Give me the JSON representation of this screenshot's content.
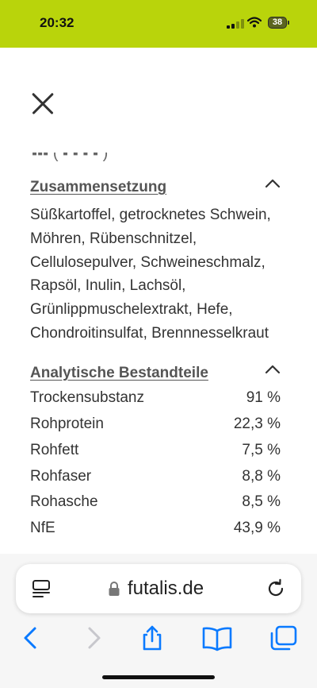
{
  "status": {
    "time": "20:32",
    "battery": "38"
  },
  "header": {
    "close_label": ""
  },
  "composition": {
    "title": "Zusammensetzung",
    "text": "Süßkartoffel, getrocknetes Schwein,\nMöhren, Rübenschnitzel,\nCellulosepulver, Schweineschmalz,\nRapsöl, Inulin, Lachsöl,\nGrünlippmuschelextrakt, Hefe,\nChondroitinsulfat, Brennnesselkraut"
  },
  "analysis": {
    "title": "Analytische Bestandteile",
    "rows": [
      {
        "label": "Trockensubstanz",
        "value": "91 %"
      },
      {
        "label": "Rohprotein",
        "value": "22,3 %"
      },
      {
        "label": "Rohfett",
        "value": "7,5 %"
      },
      {
        "label": "Rohfaser",
        "value": "8,8 %"
      },
      {
        "label": "Rohasche",
        "value": "8,5 %"
      },
      {
        "label": "NfE",
        "value": "43,9 %"
      }
    ]
  },
  "browser": {
    "domain": "futalis.de",
    "icons": [
      "reader-mode-icon",
      "lock-icon",
      "reload-icon",
      "back-icon",
      "forward-icon",
      "share-icon",
      "bookmarks-icon",
      "tabs-icon"
    ]
  },
  "colors": {
    "status_bar": "#b9d40b",
    "text": "#333333",
    "accent": "#0a7aff"
  }
}
